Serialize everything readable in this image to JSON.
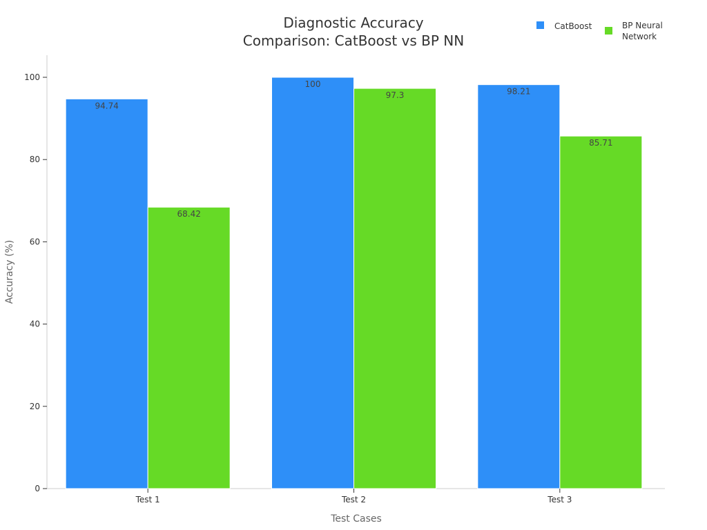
{
  "chart_data": {
    "type": "bar",
    "title": "Diagnostic Accuracy Comparison: CatBoost vs BP NN",
    "title_lines": [
      "Diagnostic Accuracy",
      "Comparison: CatBoost vs BP NN"
    ],
    "xlabel": "Test Cases",
    "ylabel": "Accuracy (%)",
    "categories": [
      "Test 1",
      "Test 2",
      "Test 3"
    ],
    "series": [
      {
        "name": "CatBoost",
        "values": [
          94.74,
          100,
          98.21
        ],
        "color": "#2e8ff8"
      },
      {
        "name": "BP Neural Network",
        "name_lines": [
          "BP Neural",
          "Network"
        ],
        "values": [
          68.42,
          97.3,
          85.71
        ],
        "color": "#66da26"
      }
    ],
    "ylim": [
      0,
      105
    ],
    "yticks": [
      0,
      20,
      40,
      60,
      80,
      100
    ],
    "grid": false,
    "legend_position": "top-right"
  }
}
